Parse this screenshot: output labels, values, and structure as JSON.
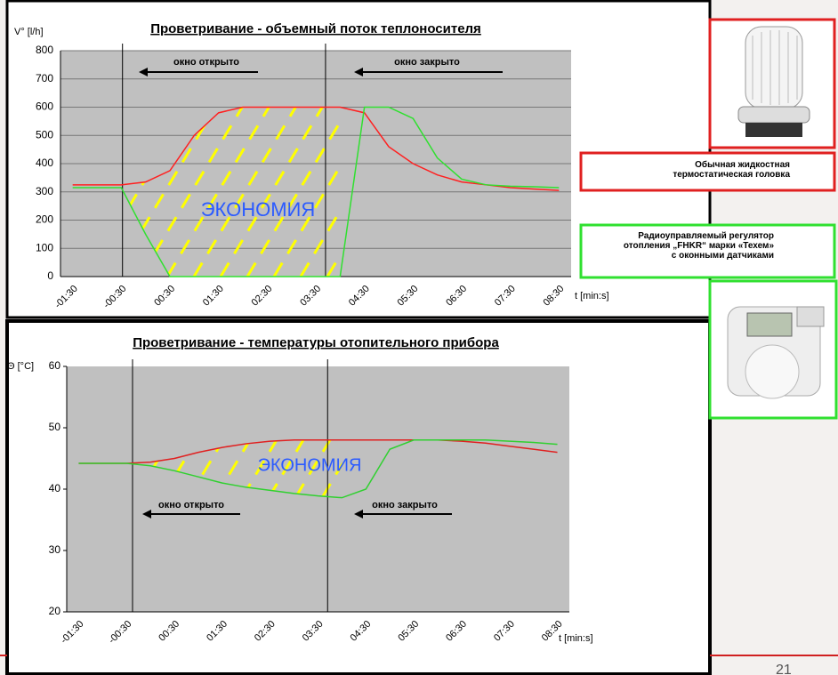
{
  "chart_data": [
    {
      "type": "line",
      "title": "Проветривание - объемный поток теплоносителя",
      "y_label": "V° [l/h]",
      "x_label": "t [min:s]",
      "categories": [
        "-01:30",
        null,
        "-00:30",
        null,
        "00:30",
        null,
        "01:30",
        null,
        "02:30",
        null,
        "03:30",
        null,
        "04:30",
        null,
        "05:30",
        null,
        "06:30",
        null,
        "07:30",
        null,
        "08:30"
      ],
      "ylim": [
        0,
        800
      ],
      "yticks": [
        0,
        100,
        200,
        300,
        400,
        500,
        600,
        700,
        800
      ],
      "grid": true,
      "series": [
        {
          "name": "Обычная жидкостная термостатическая головка",
          "color": "#ff2020",
          "values": [
            325,
            325,
            325,
            335,
            375,
            500,
            580,
            600,
            600,
            600,
            600,
            600,
            580,
            460,
            400,
            360,
            335,
            325,
            315,
            310,
            305
          ]
        },
        {
          "name": "Радиоуправляемый регулятор отопления „FHKR“ марки «Техем» с оконными датчиками",
          "color": "#30e030",
          "values": [
            315,
            315,
            315,
            150,
            0,
            0,
            0,
            0,
            0,
            0,
            0,
            0,
            600,
            600,
            560,
            420,
            345,
            325,
            320,
            318,
            315
          ]
        }
      ],
      "annotations": [
        "окно открыто",
        "окно закрыто",
        "ЭКОНОМИЯ"
      ]
    },
    {
      "type": "line",
      "title": "Проветривание - температуры отопительного прибора",
      "y_label": "Θ [°C]",
      "x_label": "t [min:s]",
      "categories": [
        "-01:30",
        null,
        "-00:30",
        null,
        "00:30",
        null,
        "01:30",
        null,
        "02:30",
        null,
        "03:30",
        null,
        "04:30",
        null,
        "05:30",
        null,
        "06:30",
        null,
        "07:30",
        null,
        "08:30"
      ],
      "ylim": [
        20,
        60
      ],
      "yticks": [
        20,
        30,
        40,
        50,
        60
      ],
      "grid": false,
      "series": [
        {
          "color": "#e02020",
          "values": [
            44.2,
            44.2,
            44.2,
            44.4,
            45,
            46,
            46.8,
            47.4,
            47.8,
            48,
            48,
            48,
            48,
            48,
            48,
            48,
            47.8,
            47.5,
            47,
            46.5,
            46
          ]
        },
        {
          "color": "#30d030",
          "values": [
            44.2,
            44.2,
            44.2,
            43.8,
            43,
            42,
            41,
            40.3,
            39.8,
            39.3,
            38.9,
            38.6,
            40,
            46.5,
            48,
            48,
            48,
            48,
            47.8,
            47.6,
            47.3
          ]
        }
      ],
      "annotations": [
        "окно открыто",
        "окно закрыто",
        "ЭКОНОМИЯ"
      ]
    }
  ],
  "slide": {
    "page_number": "21"
  }
}
